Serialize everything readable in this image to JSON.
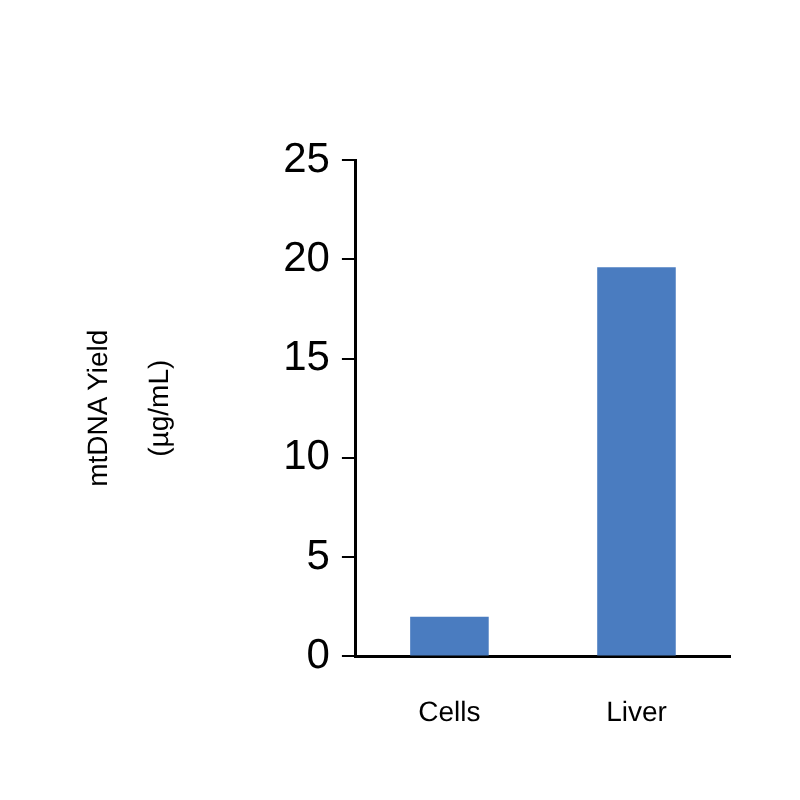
{
  "chart_data": {
    "type": "bar",
    "ylabel": "mtDNA Yield (µg/mL)",
    "categories": [
      "Cells",
      "Liver"
    ],
    "values": [
      2,
      19.6
    ],
    "color": "#4a7cc0",
    "ylim": [
      0,
      25
    ],
    "yticks": [
      0,
      5,
      10,
      15,
      20,
      25
    ],
    "grid": false,
    "legend": false
  }
}
